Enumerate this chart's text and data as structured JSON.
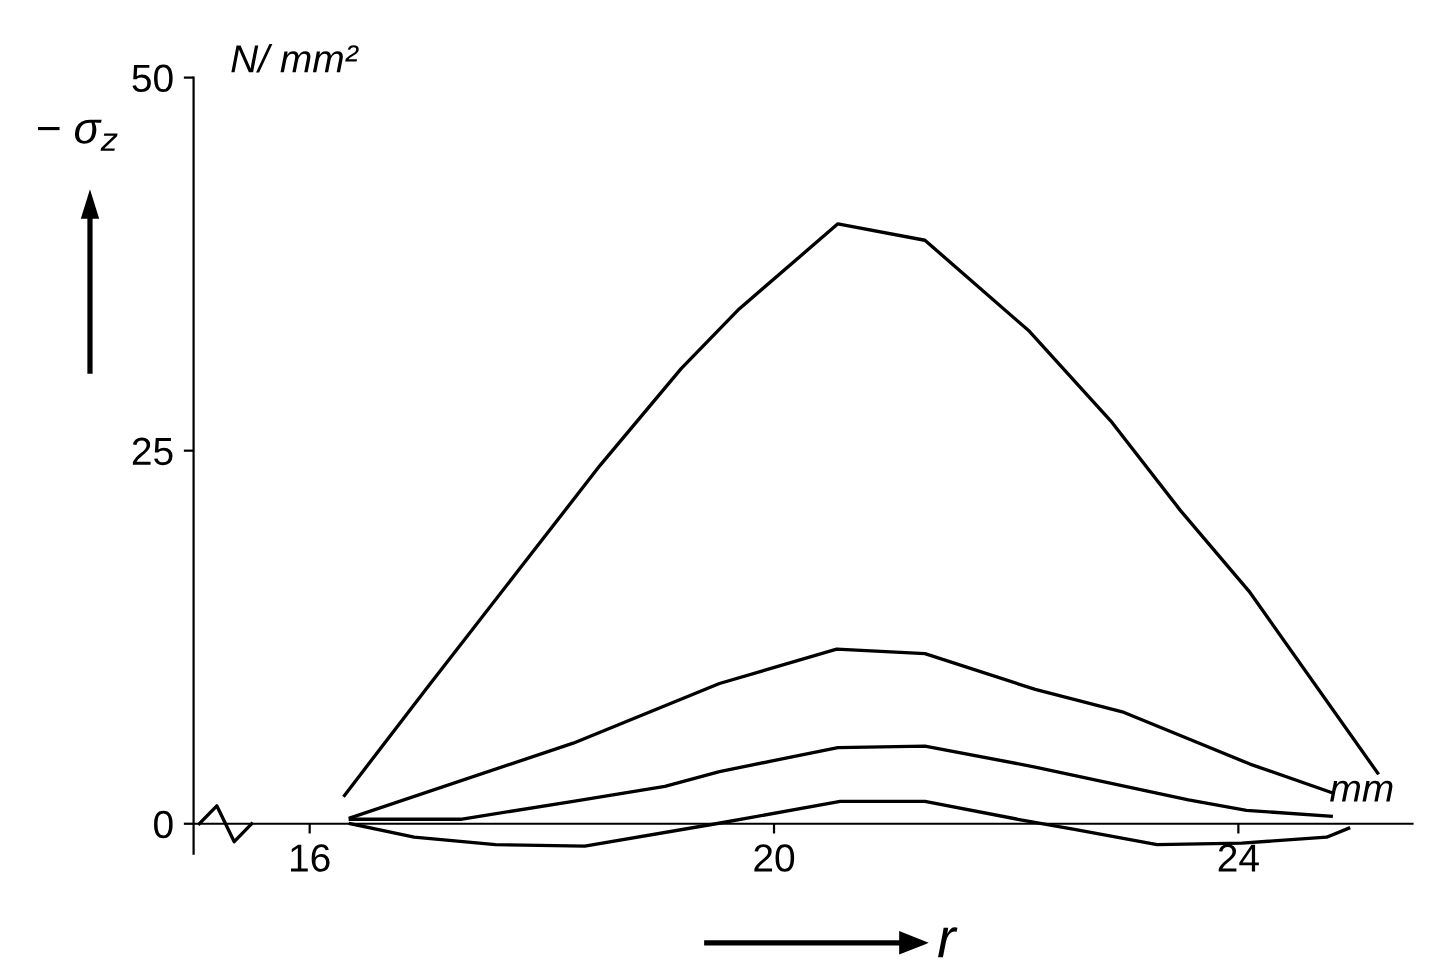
{
  "chart_data": {
    "type": "line",
    "xlabel": "r",
    "ylabel": "− σ$_{z}$",
    "annotations": [
      "N/ mm²",
      "mm"
    ],
    "xlim": [
      15,
      25.5
    ],
    "ylim": [
      -2,
      50
    ],
    "xticks": [
      16,
      20,
      24
    ],
    "yticks": [
      0,
      25,
      50
    ],
    "grid": false,
    "legend": false,
    "marker": "none",
    "line_style": "solid",
    "series": [
      {
        "color": "#000000",
        "x": [
          16.3,
          17.0,
          17.8,
          18.5,
          19.2,
          19.7,
          20.55,
          21.3,
          22.2,
          22.9,
          23.5,
          24.1,
          25.2
        ],
        "values": [
          1.9,
          9,
          17,
          24,
          30.5,
          34.5,
          40.2,
          39.1,
          33,
          27,
          21,
          15.5,
          3.4
        ]
      },
      {
        "color": "#000000",
        "x": [
          16.35,
          18.27,
          19.53,
          20.54,
          21.3,
          22.25,
          23.0,
          23.6,
          24.1,
          24.8
        ],
        "values": [
          0.4,
          5.4,
          9.4,
          11.7,
          11.4,
          9,
          7.5,
          5.6,
          4,
          2.1
        ]
      },
      {
        "color": "#000000",
        "x": [
          16.35,
          17.3,
          18.27,
          19.06,
          19.53,
          20.55,
          21.3,
          22.25,
          23.57,
          24.07,
          24.8
        ],
        "values": [
          0.3,
          0.3,
          1.5,
          2.5,
          3.5,
          5.1,
          5.2,
          3.8,
          1.6,
          0.9,
          0.5
        ]
      },
      {
        "color": "#000000",
        "x": [
          16.35,
          16.9,
          17.6,
          18.37,
          19.5,
          20.57,
          21.3,
          22.1,
          22.6,
          23.3,
          24.03,
          24.76,
          24.95
        ],
        "values": [
          0,
          -0.9,
          -1.4,
          -1.5,
          0,
          1.5,
          1.5,
          0.3,
          -0.4,
          -1.4,
          -1.3,
          -0.9,
          -0.3
        ]
      }
    ]
  }
}
